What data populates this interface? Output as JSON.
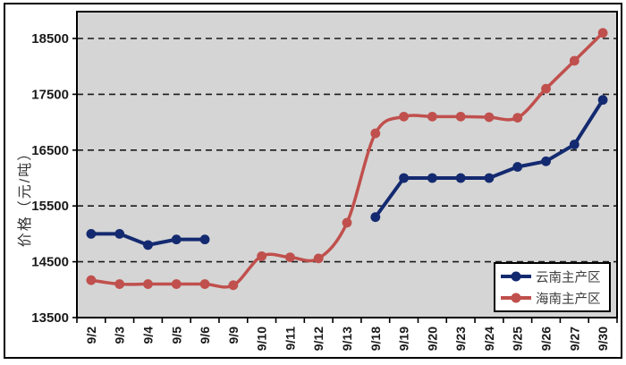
{
  "figure": {
    "y_axis_title": "价格（元/吨）",
    "plot_bg_color": "#d5d5d5",
    "gridline_color": "#1a1a1a",
    "outer_border_color": "#000000"
  },
  "legend": {
    "items": [
      {
        "label": "云南主产区",
        "color": "#142a70"
      },
      {
        "label": "海南主产区",
        "color": "#c0504d"
      }
    ]
  },
  "chart_data": {
    "type": "line",
    "title": "",
    "xlabel": "",
    "ylabel": "价格（元/吨）",
    "categories": [
      "9/2",
      "9/3",
      "9/4",
      "9/5",
      "9/6",
      "9/9",
      "9/10",
      "9/11",
      "9/12",
      "9/13",
      "9/18",
      "9/19",
      "9/20",
      "9/23",
      "9/24",
      "9/25",
      "9/26",
      "9/27",
      "9/30"
    ],
    "series": [
      {
        "name": "云南主产区",
        "color": "#142a70",
        "smooth": false,
        "values": [
          15000,
          15000,
          14800,
          14900,
          14900,
          null,
          null,
          null,
          null,
          null,
          15300,
          16000,
          16000,
          16000,
          16000,
          16200,
          16300,
          16600,
          17400
        ]
      },
      {
        "name": "海南主产区",
        "color": "#c0504d",
        "smooth": true,
        "values": [
          14170,
          14100,
          14100,
          14100,
          14100,
          14080,
          14600,
          14580,
          14560,
          15200,
          16800,
          17100,
          17100,
          17100,
          17090,
          17080,
          17600,
          18100,
          18600
        ]
      }
    ],
    "yticks": [
      13500,
      14500,
      15500,
      16500,
      17500,
      18500
    ],
    "ylim": [
      13500,
      18980
    ],
    "grid": "horizontal-dashed",
    "legend_position": "inside-bottom-right"
  }
}
